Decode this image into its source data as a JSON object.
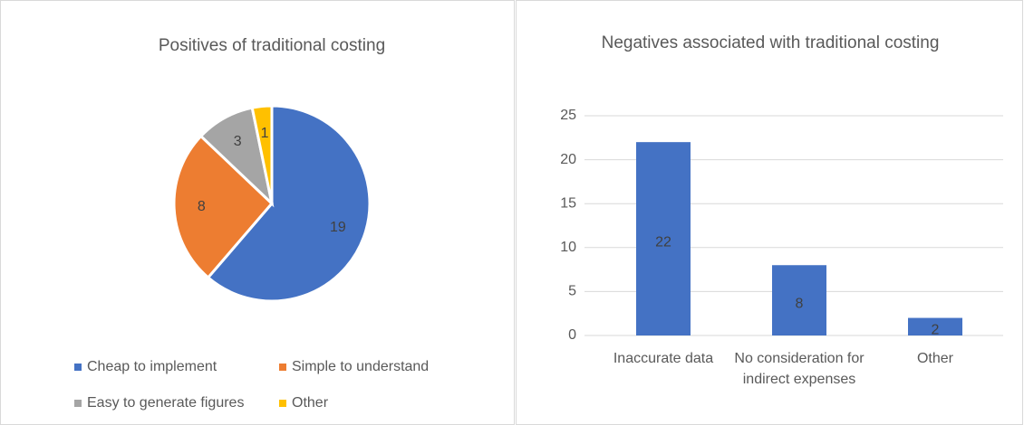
{
  "chart_data": [
    {
      "type": "pie",
      "title": "Positives of traditional costing",
      "categories": [
        "Cheap to implement",
        "Simple to understand",
        "Easy to generate figures",
        "Other"
      ],
      "values": [
        19,
        8,
        3,
        1
      ],
      "colors": [
        "#4472c4",
        "#ed7d31",
        "#a5a5a5",
        "#ffc000"
      ],
      "legend": "bottom"
    },
    {
      "type": "bar",
      "title": "Negatives associated with traditional costing",
      "categories": [
        "Inaccurate data",
        "No consideration for indirect expenses",
        "Other"
      ],
      "values": [
        22,
        8,
        2
      ],
      "color": "#4472c4",
      "ylim": [
        0,
        25
      ],
      "yticks": [
        0,
        5,
        10,
        15,
        20,
        25
      ],
      "grid": true
    }
  ]
}
